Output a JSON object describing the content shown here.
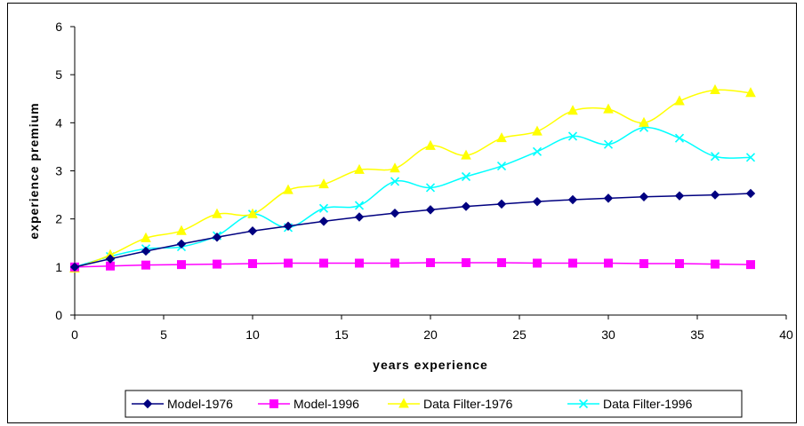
{
  "chart_data": {
    "type": "line",
    "title": "",
    "xlabel": "years experience",
    "ylabel": "experience premium",
    "xlim": [
      0,
      40
    ],
    "ylim": [
      0,
      6
    ],
    "xticks": [
      "0",
      "5",
      "10",
      "15",
      "20",
      "25",
      "30",
      "35",
      "40"
    ],
    "yticks": [
      "0",
      "1",
      "2",
      "3",
      "4",
      "5",
      "6"
    ],
    "grid": false,
    "legend_position": "bottom",
    "series": [
      {
        "name": "Model-1976",
        "color": "#000080",
        "marker": "diamond",
        "smooth": false,
        "x": [
          0,
          2,
          4,
          6,
          8,
          10,
          12,
          14,
          16,
          18,
          20,
          22,
          24,
          26,
          28,
          30,
          32,
          34,
          36,
          38
        ],
        "y": [
          1.0,
          1.17,
          1.33,
          1.48,
          1.62,
          1.75,
          1.85,
          1.95,
          2.04,
          2.12,
          2.19,
          2.26,
          2.31,
          2.36,
          2.4,
          2.43,
          2.46,
          2.48,
          2.5,
          2.53
        ]
      },
      {
        "name": "Model-1996",
        "color": "#FF00FF",
        "marker": "square",
        "smooth": false,
        "x": [
          0,
          2,
          4,
          6,
          8,
          10,
          12,
          14,
          16,
          18,
          20,
          22,
          24,
          26,
          28,
          30,
          32,
          34,
          36,
          38
        ],
        "y": [
          1.0,
          1.02,
          1.04,
          1.05,
          1.06,
          1.07,
          1.08,
          1.08,
          1.08,
          1.08,
          1.09,
          1.09,
          1.09,
          1.08,
          1.08,
          1.08,
          1.07,
          1.07,
          1.06,
          1.05
        ]
      },
      {
        "name": "Data Filter-1976",
        "color": "#FFFF00",
        "marker": "triangle",
        "smooth": true,
        "x": [
          0,
          2,
          4,
          6,
          8,
          10,
          12,
          14,
          16,
          18,
          20,
          22,
          24,
          26,
          28,
          30,
          32,
          34,
          36,
          38
        ],
        "y": [
          0.97,
          1.25,
          1.6,
          1.75,
          2.1,
          2.1,
          2.6,
          2.72,
          3.02,
          3.05,
          3.52,
          3.32,
          3.68,
          3.82,
          4.25,
          4.28,
          4.0,
          4.45,
          4.68,
          4.62
        ]
      },
      {
        "name": "Data Filter-1996",
        "color": "#00FFFF",
        "marker": "x",
        "smooth": true,
        "x": [
          0,
          2,
          4,
          6,
          8,
          10,
          12,
          14,
          16,
          18,
          20,
          22,
          24,
          26,
          28,
          30,
          32,
          34,
          36,
          38
        ],
        "y": [
          1.0,
          1.22,
          1.38,
          1.42,
          1.65,
          2.1,
          1.82,
          2.22,
          2.28,
          2.78,
          2.65,
          2.88,
          3.1,
          3.4,
          3.72,
          3.55,
          3.9,
          3.68,
          3.3,
          3.28
        ]
      }
    ]
  }
}
